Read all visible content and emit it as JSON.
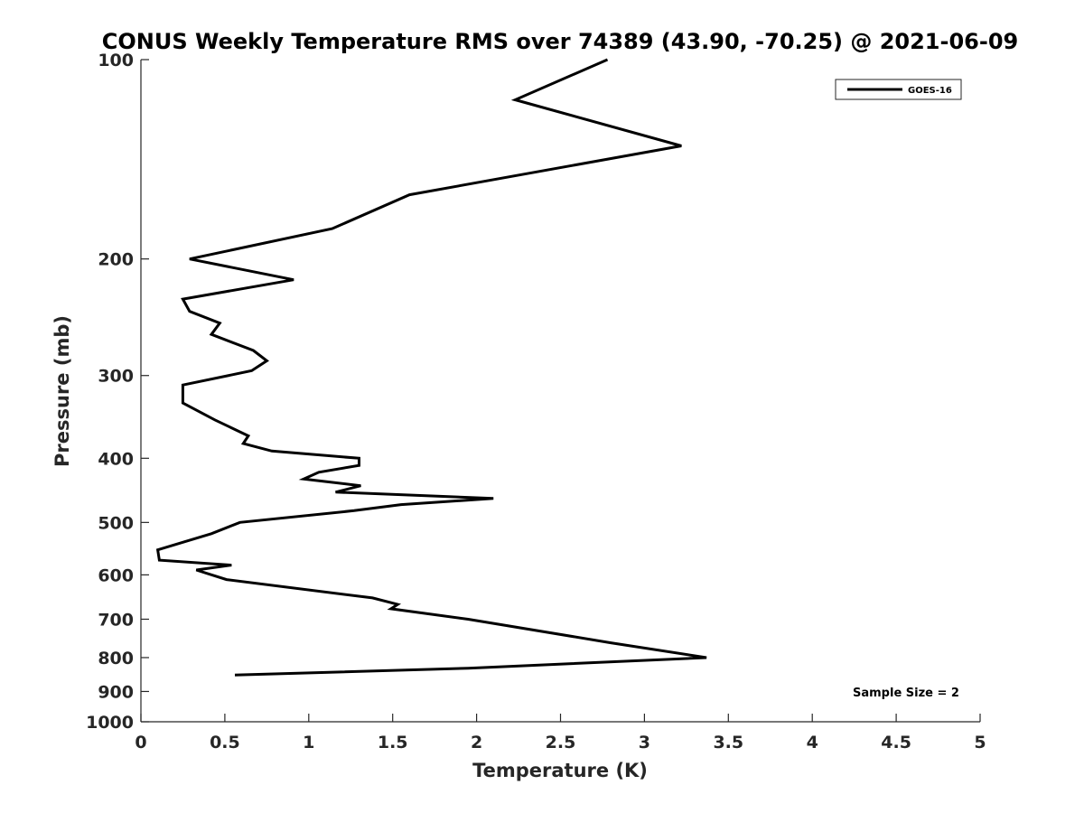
{
  "chart_data": {
    "type": "line",
    "title": "CONUS Weekly Temperature RMS over 74389 (43.90, -70.25) @ 2021-06-09",
    "xlabel": "Temperature (K)",
    "ylabel": "Pressure (mb)",
    "xlim": [
      0,
      5
    ],
    "ylim": [
      100,
      1000
    ],
    "y_scale": "log",
    "y_reversed": true,
    "x_ticks": [
      "0",
      "0.5",
      "1",
      "1.5",
      "2",
      "2.5",
      "3",
      "3.5",
      "4",
      "4.5",
      "5"
    ],
    "y_ticks": [
      "100",
      "200",
      "300",
      "400",
      "500",
      "600",
      "700",
      "800",
      "900",
      "1000"
    ],
    "grid": false,
    "legend_position": "top-right",
    "series": [
      {
        "name": "GOES-16",
        "color": "#000000",
        "points": [
          [
            2.78,
            100
          ],
          [
            2.23,
            115
          ],
          [
            3.22,
            135
          ],
          [
            1.6,
            160
          ],
          [
            1.14,
            180
          ],
          [
            0.29,
            200
          ],
          [
            0.91,
            215
          ],
          [
            0.25,
            230
          ],
          [
            0.29,
            240
          ],
          [
            0.47,
            250
          ],
          [
            0.42,
            260
          ],
          [
            0.67,
            275
          ],
          [
            0.75,
            285
          ],
          [
            0.66,
            295
          ],
          [
            0.25,
            310
          ],
          [
            0.25,
            330
          ],
          [
            0.44,
            350
          ],
          [
            0.64,
            370
          ],
          [
            0.61,
            380
          ],
          [
            0.78,
            390
          ],
          [
            1.3,
            400
          ],
          [
            1.3,
            410
          ],
          [
            1.06,
            420
          ],
          [
            0.97,
            430
          ],
          [
            1.31,
            440
          ],
          [
            1.16,
            450
          ],
          [
            2.1,
            460
          ],
          [
            1.55,
            470
          ],
          [
            1.27,
            480
          ],
          [
            0.59,
            500
          ],
          [
            0.42,
            520
          ],
          [
            0.31,
            530
          ],
          [
            0.1,
            550
          ],
          [
            0.11,
            570
          ],
          [
            0.54,
            580
          ],
          [
            0.33,
            590
          ],
          [
            0.51,
            610
          ],
          [
            1.38,
            650
          ],
          [
            1.53,
            665
          ],
          [
            1.49,
            675
          ],
          [
            1.95,
            700
          ],
          [
            2.8,
            760
          ],
          [
            3.37,
            800
          ],
          [
            1.95,
            830
          ],
          [
            0.56,
            850
          ]
        ]
      }
    ],
    "annotation": "Sample Size = 2"
  }
}
